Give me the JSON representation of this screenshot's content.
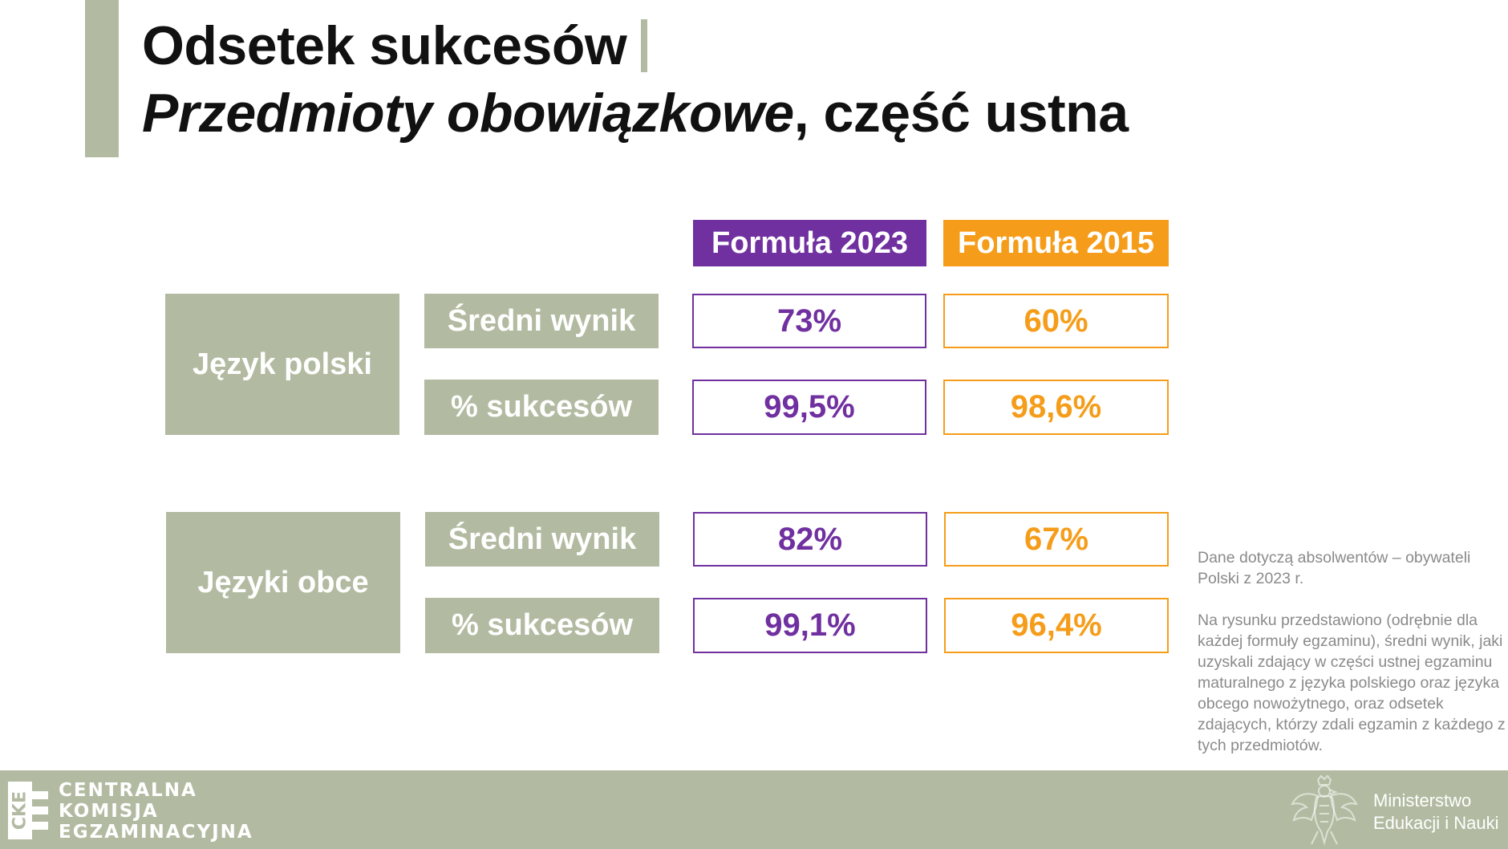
{
  "header": {
    "title": "Odsetek sukcesów",
    "subtitle_italic": "Przedmioty obowiązkowe",
    "subtitle_rest": ", część ustna"
  },
  "columns": {
    "formula_2023": "Formuła 2023",
    "formula_2015": "Formuła 2015"
  },
  "colors": {
    "accent": "#b2bba1",
    "formula_2023": "#7030a0",
    "formula_2015": "#f59d1a"
  },
  "subjects": [
    {
      "name": "Język polski",
      "rows": [
        {
          "metric": "Średni wynik",
          "formula_2023": "73%",
          "formula_2015": "60%"
        },
        {
          "metric": "% sukcesów",
          "formula_2023": "99,5%",
          "formula_2015": "98,6%"
        }
      ]
    },
    {
      "name": "Języki obce",
      "rows": [
        {
          "metric": "Średni wynik",
          "formula_2023": "82%",
          "formula_2015": "67%"
        },
        {
          "metric": "% sukcesów",
          "formula_2023": "99,1%",
          "formula_2015": "96,4%"
        }
      ]
    }
  ],
  "note": {
    "paragraph1": "Dane dotyczą absolwentów – obywateli Polski z 2023 r.",
    "paragraph2": "Na rysunku przedstawiono (odrębnie dla każdej formuły egzaminu), średni wynik, jaki uzyskali zdający w części ustnej egzaminu maturalnego z języka polskiego oraz języka obcego nowożytnego, oraz odsetek zdających, którzy zdali egzamin z każdego z tych przedmiotów."
  },
  "footer": {
    "cke_logo_icon": "cke-logo-icon",
    "cke_logo_text": "CKE",
    "cke_line1": "CENTRALNA",
    "cke_line2": "KOMISJA",
    "cke_line3": "EGZAMINACYJNA",
    "eagle_icon": "polish-eagle-emblem-icon",
    "ministry_line1": "Ministerstwo",
    "ministry_line2": "Edukacji i Nauki"
  }
}
